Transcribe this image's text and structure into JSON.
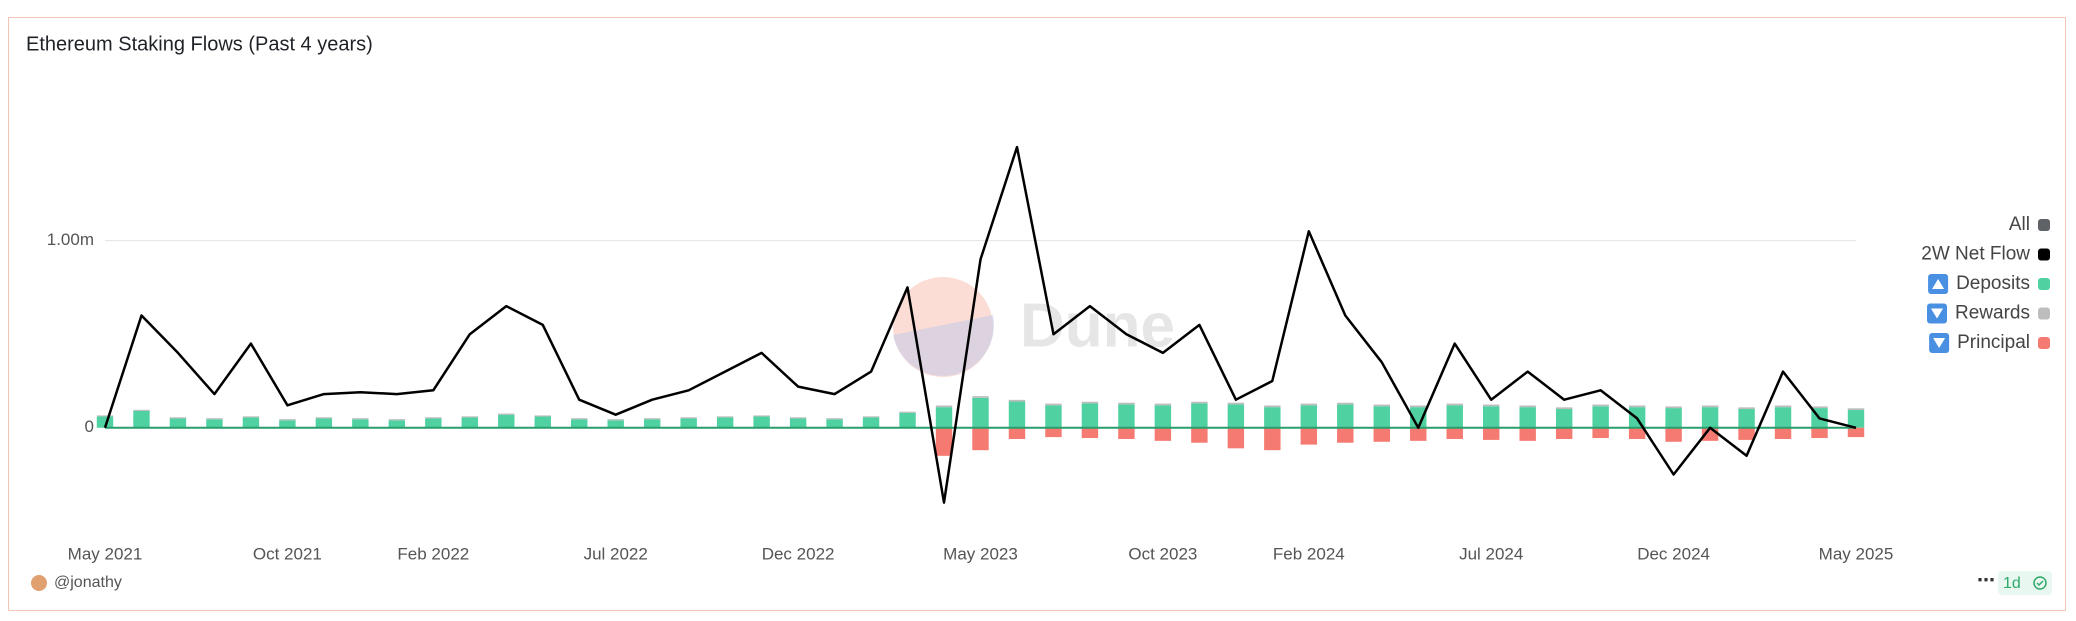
{
  "chart_data": {
    "type": "bar",
    "title": "Ethereum Staking Flows (Past 4 years)",
    "watermark": "Dune",
    "author": "@jonathy",
    "refresh": "1d",
    "legend_all": {
      "name": "All",
      "color": "#5f6368"
    },
    "legend_position": "right",
    "x": [
      "2021-05",
      "2021-06",
      "2021-07",
      "2021-08",
      "2021-09",
      "2021-10",
      "2021-11",
      "2021-12",
      "2022-01",
      "2022-02",
      "2022-03",
      "2022-04",
      "2022-05",
      "2022-06",
      "2022-07",
      "2022-08",
      "2022-09",
      "2022-10",
      "2022-11",
      "2022-12",
      "2023-01",
      "2023-02",
      "2023-03",
      "2023-04",
      "2023-05",
      "2023-06",
      "2023-07",
      "2023-08",
      "2023-09",
      "2023-10",
      "2023-11",
      "2023-12",
      "2024-01",
      "2024-02",
      "2024-03",
      "2024-04",
      "2024-05",
      "2024-06",
      "2024-07",
      "2024-08",
      "2024-09",
      "2024-10",
      "2024-11",
      "2024-12",
      "2025-01",
      "2025-02",
      "2025-03",
      "2025-04",
      "2025-05"
    ],
    "xticks": [
      {
        "value": "2021-05",
        "label": "May 2021"
      },
      {
        "value": "2021-10",
        "label": "Oct 2021"
      },
      {
        "value": "2022-02",
        "label": "Feb 2022"
      },
      {
        "value": "2022-07",
        "label": "Jul 2022"
      },
      {
        "value": "2022-12",
        "label": "Dec 2022"
      },
      {
        "value": "2023-05",
        "label": "May 2023"
      },
      {
        "value": "2023-10",
        "label": "Oct 2023"
      },
      {
        "value": "2024-02",
        "label": "Feb 2024"
      },
      {
        "value": "2024-07",
        "label": "Jul 2024"
      },
      {
        "value": "2024-12",
        "label": "Dec 2024"
      },
      {
        "value": "2025-05",
        "label": "May 2025"
      }
    ],
    "ylim": [
      -600000,
      1800000
    ],
    "yticks": [
      0,
      {
        "value": 1000000,
        "label": "1.00m"
      }
    ],
    "grid": true,
    "series": [
      {
        "name": "2W Net Flow",
        "type": "line",
        "color": "#000000",
        "values": [
          0,
          600000,
          400000,
          180000,
          450000,
          120000,
          180000,
          190000,
          180000,
          200000,
          500000,
          650000,
          550000,
          150000,
          70000,
          150000,
          200000,
          300000,
          400000,
          220000,
          180000,
          300000,
          750000,
          -400000,
          900000,
          1500000,
          500000,
          650000,
          500000,
          400000,
          550000,
          150000,
          250000,
          1050000,
          600000,
          350000,
          0,
          450000,
          150000,
          300000,
          150000,
          200000,
          50000,
          -250000,
          0,
          -150000,
          300000,
          50000,
          0
        ]
      },
      {
        "name": "Deposits",
        "type": "bar",
        "color": "#4fd1a1",
        "sort": "up",
        "values": [
          60000,
          90000,
          50000,
          45000,
          55000,
          40000,
          50000,
          45000,
          40000,
          50000,
          55000,
          70000,
          60000,
          45000,
          40000,
          45000,
          50000,
          55000,
          60000,
          50000,
          45000,
          55000,
          80000,
          110000,
          160000,
          140000,
          120000,
          130000,
          125000,
          120000,
          130000,
          125000,
          110000,
          120000,
          125000,
          115000,
          110000,
          120000,
          115000,
          110000,
          100000,
          115000,
          110000,
          105000,
          110000,
          100000,
          110000,
          105000,
          95000
        ]
      },
      {
        "name": "Rewards",
        "type": "bar",
        "color": "#bdbdbd",
        "sort": "down",
        "values": [
          6000,
          6000,
          6000,
          6000,
          6000,
          6000,
          6000,
          6000,
          6000,
          6000,
          6000,
          6000,
          6000,
          6000,
          6000,
          6000,
          6000,
          6000,
          6000,
          6000,
          6000,
          6000,
          6000,
          9000,
          9000,
          9000,
          9000,
          9000,
          9000,
          9000,
          9000,
          9000,
          9000,
          9000,
          9000,
          9000,
          9000,
          9000,
          9000,
          9000,
          9000,
          9000,
          9000,
          9000,
          9000,
          9000,
          9000,
          9000,
          9000
        ]
      },
      {
        "name": "Principal",
        "type": "bar",
        "color": "#f47a72",
        "sort": "down",
        "values": [
          0,
          0,
          0,
          0,
          0,
          0,
          0,
          0,
          0,
          0,
          0,
          0,
          0,
          0,
          0,
          0,
          0,
          0,
          0,
          0,
          0,
          0,
          0,
          -150000,
          -120000,
          -60000,
          -50000,
          -55000,
          -60000,
          -70000,
          -80000,
          -110000,
          -120000,
          -90000,
          -80000,
          -75000,
          -70000,
          -60000,
          -65000,
          -70000,
          -60000,
          -55000,
          -60000,
          -75000,
          -70000,
          -65000,
          -60000,
          -55000,
          -50000
        ]
      }
    ]
  }
}
